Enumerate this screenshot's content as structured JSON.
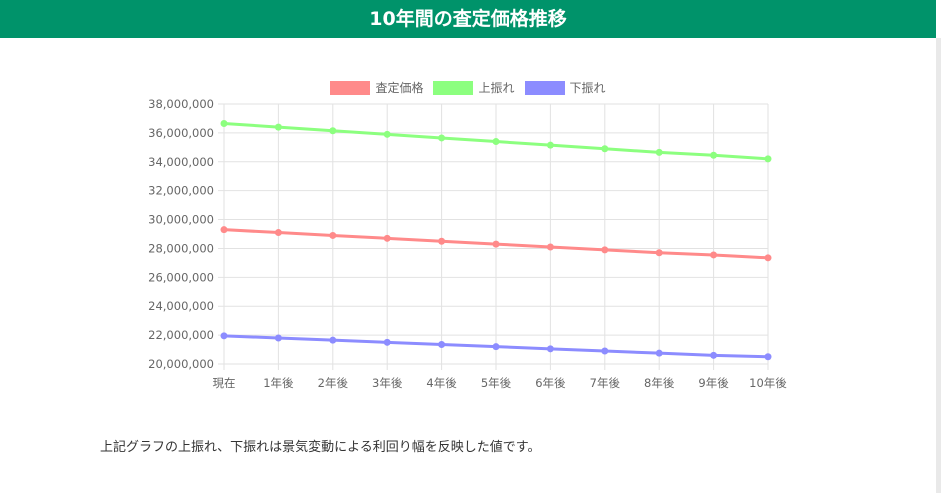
{
  "header": {
    "title": "10年間の査定価格推移"
  },
  "note": "上記グラフの上振れ、下振れは景気変動による利回り幅を反映した値です。",
  "chart_data": {
    "type": "line",
    "title": "",
    "xlabel": "",
    "ylabel": "",
    "legend_position": "top",
    "grid": true,
    "categories": [
      "現在",
      "1年後",
      "2年後",
      "3年後",
      "4年後",
      "5年後",
      "6年後",
      "7年後",
      "8年後",
      "9年後",
      "10年後"
    ],
    "ylim": [
      20000000,
      38000000
    ],
    "yticks": [
      "20,000,000",
      "22,000,000",
      "24,000,000",
      "26,000,000",
      "28,000,000",
      "30,000,000",
      "32,000,000",
      "34,000,000",
      "36,000,000",
      "38,000,000"
    ],
    "series": [
      {
        "name": "査定価格",
        "color": "#ff8a8a",
        "values": [
          29300000,
          29100000,
          28900000,
          28700000,
          28500000,
          28300000,
          28100000,
          27900000,
          27700000,
          27550000,
          27350000
        ]
      },
      {
        "name": "上振れ",
        "color": "#8cff7f",
        "values": [
          36650000,
          36400000,
          36150000,
          35900000,
          35650000,
          35400000,
          35150000,
          34900000,
          34650000,
          34450000,
          34200000
        ]
      },
      {
        "name": "下振れ",
        "color": "#8c8cff",
        "values": [
          21950000,
          21800000,
          21650000,
          21500000,
          21350000,
          21200000,
          21050000,
          20900000,
          20750000,
          20600000,
          20500000
        ]
      }
    ]
  }
}
